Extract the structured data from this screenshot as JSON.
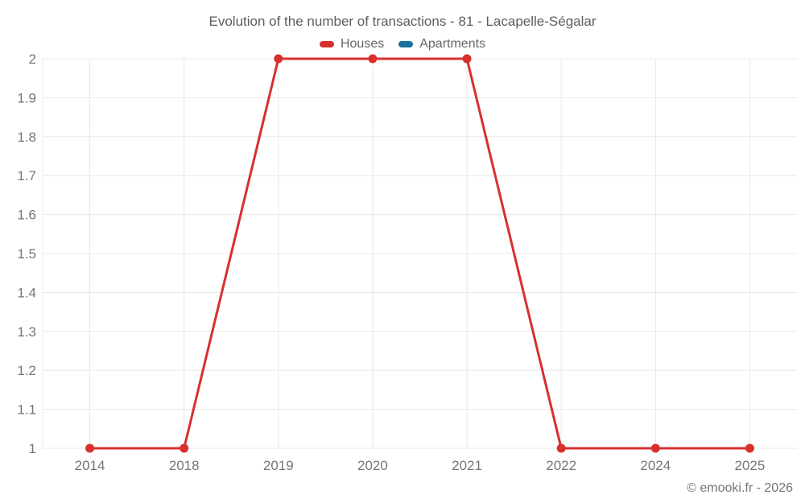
{
  "chart_data": {
    "type": "line",
    "title": "Evolution of the number of transactions - 81 - Lacapelle-Ségalar",
    "categories": [
      "2014",
      "2018",
      "2019",
      "2020",
      "2021",
      "2022",
      "2024",
      "2025"
    ],
    "series": [
      {
        "name": "Houses",
        "color": "#d7302f",
        "values": [
          1,
          1,
          2,
          2,
          2,
          1,
          1,
          1
        ]
      },
      {
        "name": "Apartments",
        "color": "#17739e",
        "values": []
      }
    ],
    "ylim": [
      1,
      2
    ],
    "yticks": [
      1,
      1.1,
      1.2,
      1.3,
      1.4,
      1.5,
      1.6,
      1.7,
      1.8,
      1.9,
      2
    ],
    "grid": true,
    "legend_position": "top",
    "marker": "circle"
  },
  "footer": {
    "copyright": "© emooki.fr - 2026"
  }
}
